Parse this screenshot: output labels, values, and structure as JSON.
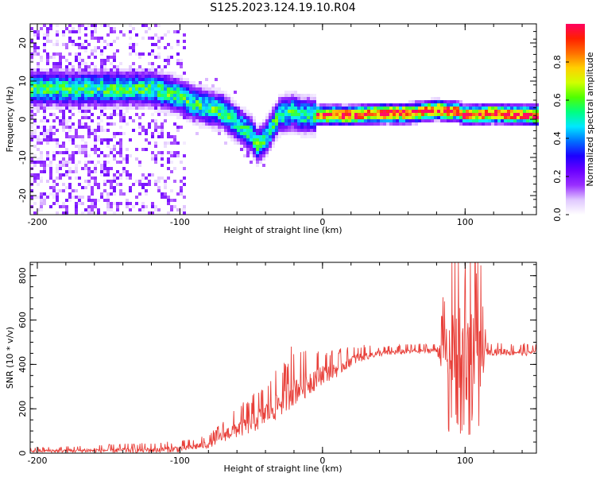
{
  "title": "S125.2023.124.19.10.R04",
  "chart_data": [
    {
      "type": "heatmap",
      "xlabel": "Height of straight line (km)",
      "ylabel": "Frequency (Hz)",
      "xlim": [
        -205,
        150
      ],
      "ylim": [
        -25,
        25
      ],
      "xticks": [
        -200,
        -100,
        0,
        100
      ],
      "yticks": [
        -20,
        -10,
        0,
        10,
        20
      ],
      "grid": false,
      "colorbar": {
        "label": "Normalized spectral amplitude",
        "range": [
          0,
          1
        ],
        "ticks": [
          0.0,
          0.2,
          0.4,
          0.6,
          0.8
        ],
        "colormap": [
          "#ffffff",
          "#e0c8ff",
          "#9a30ff",
          "#6a00ff",
          "#1c00ff",
          "#0070ff",
          "#00e8ff",
          "#00ff80",
          "#50ff00",
          "#d0ff00",
          "#ffd000",
          "#ff7000",
          "#ff2000",
          "#ff0060"
        ]
      },
      "ridge": {
        "x": [
          -140,
          -120,
          -100,
          -90,
          -80,
          -70,
          -60,
          -50,
          -45,
          -40,
          -30,
          -20,
          -15,
          -10,
          0,
          20,
          40,
          60,
          80,
          90,
          95,
          100,
          120,
          150
        ],
        "y": [
          8,
          8,
          6,
          4,
          3,
          2,
          -1,
          -4,
          -7,
          -5,
          1,
          2,
          1,
          1,
          1,
          1,
          1.5,
          1.5,
          2.5,
          2,
          2,
          1,
          1.5,
          1
        ]
      },
      "noise_region_x": [
        -205,
        -95
      ],
      "noise_frequency_range": [
        -25,
        25
      ]
    },
    {
      "type": "line",
      "xlabel": "Height of straight line (km)",
      "ylabel": "SNR (10 * v/v)",
      "xlim": [
        -205,
        150
      ],
      "ylim": [
        0,
        860
      ],
      "xticks": [
        -200,
        -100,
        0,
        100
      ],
      "yticks": [
        0,
        200,
        400,
        600,
        800
      ],
      "grid": false,
      "color": "#e8403a",
      "series": [
        {
          "envelope": {
            "x": [
              -205,
              -120,
              -100,
              -80,
              -70,
              -60,
              -50,
              -40,
              -30,
              -20,
              -10,
              0,
              10,
              20,
              30,
              40,
              60,
              80,
              90,
              95,
              100,
              105,
              110,
              150
            ],
            "y": [
              10,
              15,
              20,
              40,
              80,
              110,
              140,
              180,
              230,
              290,
              320,
              360,
              380,
              420,
              440,
              450,
              460,
              465,
              470,
              470,
              470,
              470,
              460,
              455
            ]
          },
          "noise_amplitude": {
            "x": [
              -205,
              -80,
              -60,
              -40,
              -20,
              0,
              20,
              40,
              80,
              88,
              95,
              100,
              110,
              115,
              150
            ],
            "y": [
              10,
              25,
              60,
              90,
              110,
              70,
              40,
              20,
              20,
              250,
              400,
              350,
              300,
              25,
              25
            ]
          },
          "peaks": [
            {
              "x": -22,
              "y": 480
            },
            {
              "x": 93,
              "y": 860
            },
            {
              "x": 100,
              "y": 780
            },
            {
              "x": 108,
              "y": 810
            }
          ]
        }
      ]
    }
  ]
}
